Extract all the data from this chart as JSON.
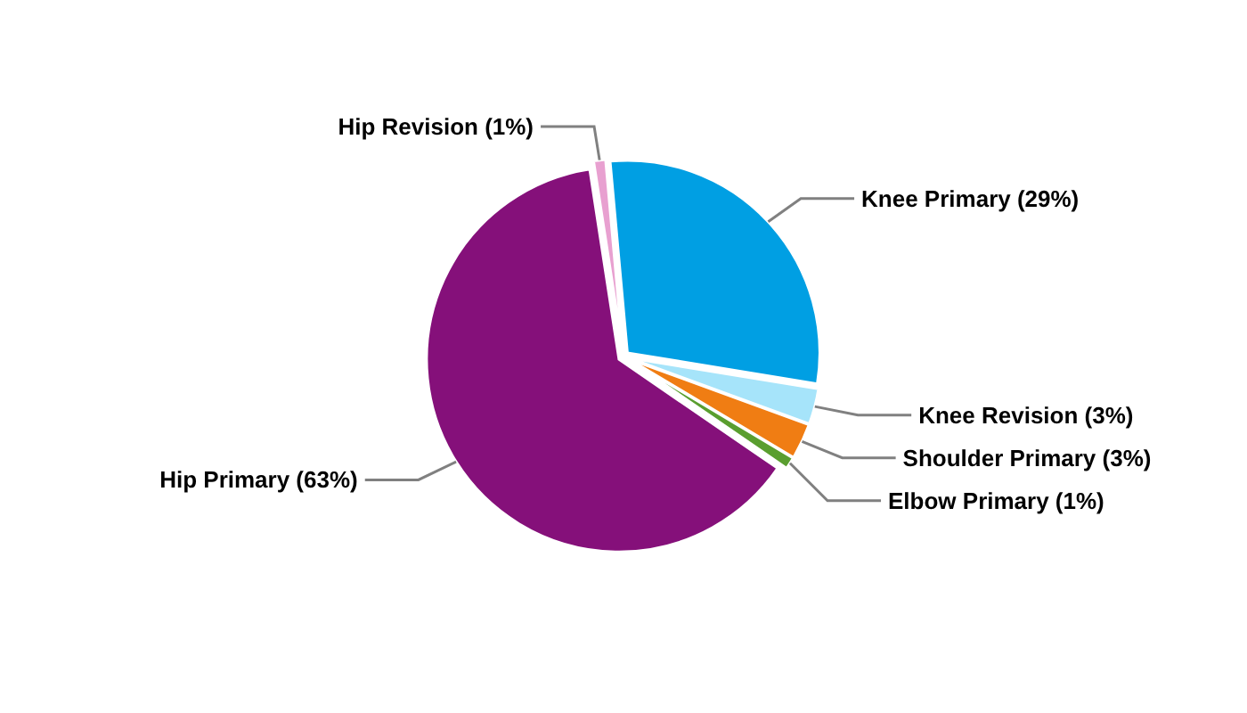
{
  "chart_data": {
    "type": "pie",
    "categories": [
      "Knee Primary (29%)",
      "Knee Revision (3%)",
      "Shoulder Primary (3%)",
      "Elbow Primary (1%)",
      "Hip Primary (63%)",
      "Hip Revision (1%)"
    ],
    "values": [
      29,
      3,
      3,
      1,
      63,
      1
    ],
    "colors": [
      "#009fe3",
      "#a6e4fa",
      "#f07d13",
      "#5a9e2f",
      "#85107a",
      "#e8a0d0"
    ]
  }
}
